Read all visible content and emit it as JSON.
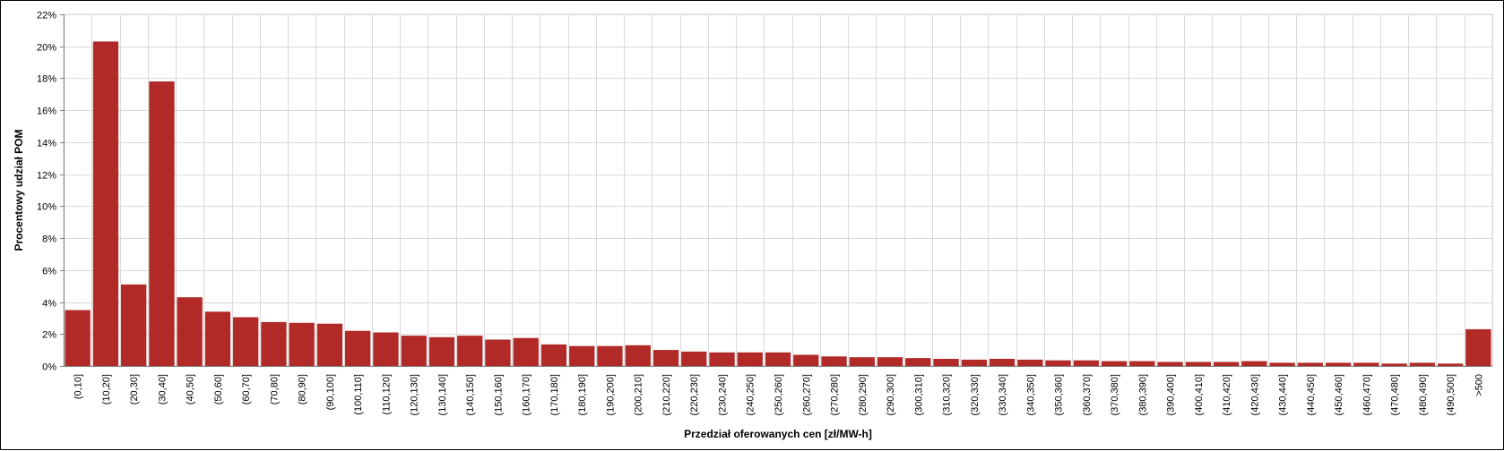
{
  "chart_data": {
    "type": "bar",
    "title": "",
    "xlabel": "Przedział oferowanych cen [zł/MW-h]",
    "ylabel": "Procentowy udział POM",
    "ylim": [
      0,
      22
    ],
    "yticks": [
      "0%",
      "2%",
      "4%",
      "6%",
      "8%",
      "10%",
      "12%",
      "14%",
      "16%",
      "18%",
      "20%",
      "22%"
    ],
    "grid": true,
    "bar_color": "#B22A27",
    "categories": [
      "(0,10]",
      "(10,20]",
      "(20,30]",
      "(30,40]",
      "(40,50]",
      "(50,60]",
      "(60,70]",
      "(70,80]",
      "(80,90]",
      "(90,100]",
      "(100,110]",
      "(110,120]",
      "(120,130]",
      "(130,140]",
      "(140,150]",
      "(150,160]",
      "(160,170]",
      "(170,180]",
      "(180,190]",
      "(190,200]",
      "(200,210]",
      "(210,220]",
      "(220,230]",
      "(230,240]",
      "(240,250]",
      "(250,260]",
      "(260,270]",
      "(270,280]",
      "(280,290]",
      "(290,300]",
      "(300,310]",
      "(310,320]",
      "(320,330]",
      "(330,340]",
      "(340,350]",
      "(350,360]",
      "(360,370]",
      "(370,380]",
      "(380,390]",
      "(390,400]",
      "(400,410]",
      "(410,420]",
      "(420,430]",
      "(430,440]",
      "(440,450]",
      "(450,460]",
      "(460,470]",
      "(470,480]",
      "(480,490]",
      "(490,500]",
      ">500"
    ],
    "values": [
      3.5,
      20.3,
      5.1,
      17.8,
      4.3,
      3.4,
      3.05,
      2.75,
      2.7,
      2.65,
      2.2,
      2.1,
      1.9,
      1.8,
      1.9,
      1.65,
      1.75,
      1.35,
      1.25,
      1.25,
      1.3,
      1.0,
      0.9,
      0.85,
      0.85,
      0.85,
      0.7,
      0.6,
      0.55,
      0.55,
      0.5,
      0.45,
      0.4,
      0.45,
      0.4,
      0.35,
      0.35,
      0.3,
      0.3,
      0.25,
      0.25,
      0.25,
      0.3,
      0.2,
      0.2,
      0.2,
      0.2,
      0.15,
      0.2,
      0.15,
      2.3
    ]
  }
}
